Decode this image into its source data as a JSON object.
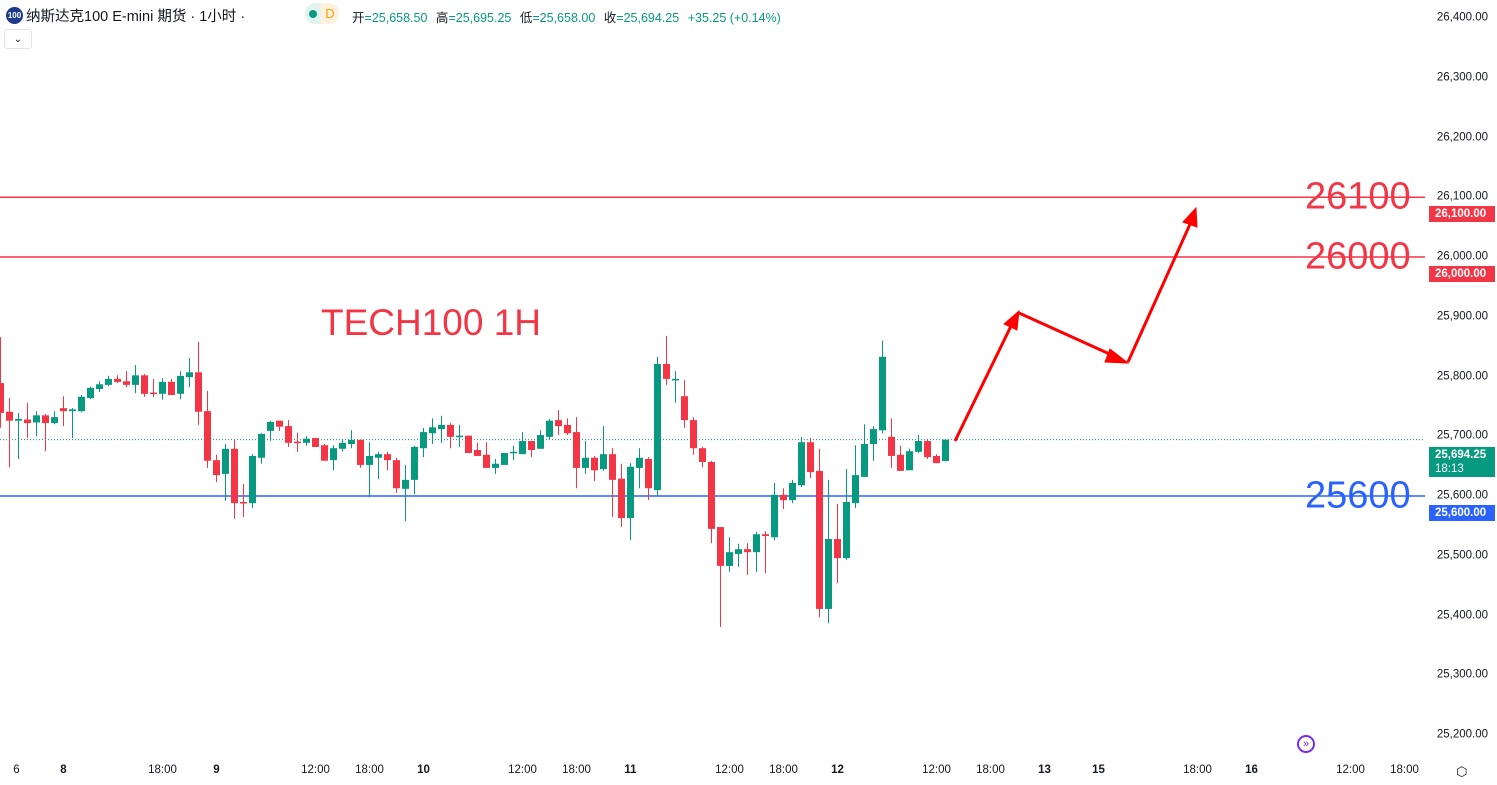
{
  "header": {
    "symbol_logo": "100",
    "title": "纳斯达克100 E-mini 期货 · 1小时 ·",
    "market_status_dot_color": "#089981",
    "data_badge": "D",
    "ohlc": [
      {
        "key": "开",
        "value": "=25,658.50"
      },
      {
        "key": "高",
        "value": "=25,695.25"
      },
      {
        "key": "低",
        "value": "=25,658.00"
      },
      {
        "key": "收",
        "value": "=25,694.25"
      }
    ],
    "change": "+35.25 (+0.14%)",
    "collapse_icon": "chevron-down-icon"
  },
  "colors": {
    "up": "#089981",
    "down": "#f23645",
    "support": "#2962ff",
    "resistance": "#f23645"
  },
  "annotations": {
    "note": "TECH100 1H",
    "levels": [
      {
        "label": "26100",
        "price": 26100,
        "tag": "26,100.00",
        "color": "#f23645"
      },
      {
        "label": "26000",
        "price": 26000,
        "tag": "26,000.00",
        "color": "#f23645"
      },
      {
        "label": "25600",
        "price": 25600,
        "tag": "25,600.00",
        "color": "#2962ff"
      }
    ],
    "projection_arrow_color": "#ff0000"
  },
  "last_price": {
    "tag": "25,694.25",
    "countdown": "18:13",
    "color": "#089981"
  },
  "icons": {
    "goto_realtime": "goto-realtime-icon",
    "settings": "settings-icon"
  },
  "chart_data": {
    "type": "candlestick",
    "title": "纳斯达克100 E-mini 期货 · 1小时",
    "ylim": [
      25150,
      26430
    ],
    "y_ticks": [
      "26,400.00",
      "26,300.00",
      "26,200.00",
      "26,100.00",
      "26,000.00",
      "25,900.00",
      "25,800.00",
      "25,700.00",
      "25,600.00",
      "25,500.00",
      "25,400.00",
      "25,300.00",
      "25,200.00"
    ],
    "y_tick_values": [
      26400,
      26300,
      26200,
      26100,
      26000,
      25900,
      25800,
      25700,
      25600,
      25500,
      25400,
      25300,
      25200
    ],
    "x_ticks": [
      {
        "label": "6",
        "bar": 1,
        "bold": false
      },
      {
        "label": "8",
        "bar": 7,
        "bold": true
      },
      {
        "label": "18:00",
        "bar": 18,
        "bold": false
      },
      {
        "label": "9",
        "bar": 24,
        "bold": true
      },
      {
        "label": "12:00",
        "bar": 35,
        "bold": false
      },
      {
        "label": "18:00",
        "bar": 41,
        "bold": false
      },
      {
        "label": "10",
        "bar": 47,
        "bold": true
      },
      {
        "label": "12:00",
        "bar": 58,
        "bold": false
      },
      {
        "label": "18:00",
        "bar": 64,
        "bold": false
      },
      {
        "label": "11",
        "bar": 70,
        "bold": true
      },
      {
        "label": "12:00",
        "bar": 81,
        "bold": false
      },
      {
        "label": "18:00",
        "bar": 87,
        "bold": false
      },
      {
        "label": "12",
        "bar": 93,
        "bold": true
      },
      {
        "label": "12:00",
        "bar": 104,
        "bold": false
      },
      {
        "label": "18:00",
        "bar": 110,
        "bold": false
      },
      {
        "label": "13",
        "bar": 116,
        "bold": true
      },
      {
        "label": "15",
        "bar": 122,
        "bold": true
      },
      {
        "label": "18:00",
        "bar": 133,
        "bold": false
      },
      {
        "label": "16",
        "bar": 139,
        "bold": true
      },
      {
        "label": "12:00",
        "bar": 150,
        "bold": false
      },
      {
        "label": "18:00",
        "bar": 156,
        "bold": false
      }
    ],
    "ohlc_columns": [
      "open",
      "high",
      "low",
      "close"
    ],
    "candles": [
      [
        25789,
        25866,
        25714,
        25739
      ],
      [
        25741,
        25764,
        25648,
        25726
      ],
      [
        25726,
        25739,
        25662,
        25729
      ],
      [
        25728,
        25756,
        25697,
        25722
      ],
      [
        25723,
        25742,
        25700,
        25735
      ],
      [
        25735,
        25737,
        25675,
        25722
      ],
      [
        25722,
        25742,
        25720,
        25732
      ],
      [
        25747,
        25767,
        25717,
        25742
      ],
      [
        25742,
        25747,
        25697,
        25745
      ],
      [
        25742,
        25769,
        25740,
        25766
      ],
      [
        25764,
        25783,
        25762,
        25781
      ],
      [
        25779,
        25792,
        25774,
        25787
      ],
      [
        25786,
        25801,
        25784,
        25796
      ],
      [
        25796,
        25802,
        25789,
        25791
      ],
      [
        25792,
        25809,
        25782,
        25786
      ],
      [
        25786,
        25819,
        25772,
        25802
      ],
      [
        25802,
        25804,
        25766,
        25771
      ],
      [
        25773,
        25796,
        25766,
        25772
      ],
      [
        25771,
        25797,
        25761,
        25791
      ],
      [
        25791,
        25796,
        25769,
        25769
      ],
      [
        25771,
        25809,
        25762,
        25801
      ],
      [
        25799,
        25831,
        25782,
        25807
      ],
      [
        25807,
        25858,
        25719,
        25741
      ],
      [
        25742,
        25776,
        25647,
        25659
      ],
      [
        25660,
        25669,
        25623,
        25635
      ],
      [
        25637,
        25687,
        25592,
        25679
      ],
      [
        25679,
        25694,
        25562,
        25588
      ],
      [
        25590,
        25620,
        25565,
        25588
      ],
      [
        25588,
        25670,
        25580,
        25667
      ],
      [
        25664,
        25705,
        25654,
        25704
      ],
      [
        25709,
        25726,
        25692,
        25724
      ],
      [
        25726,
        25726,
        25709,
        25716
      ],
      [
        25717,
        25727,
        25682,
        25689
      ],
      [
        25691,
        25706,
        25674,
        25689
      ],
      [
        25689,
        25700,
        25684,
        25696
      ],
      [
        25697,
        25697,
        25682,
        25682
      ],
      [
        25685,
        25687,
        25659,
        25659
      ],
      [
        25660,
        25685,
        25643,
        25680
      ],
      [
        25679,
        25695,
        25674,
        25689
      ],
      [
        25687,
        25710,
        25680,
        25694
      ],
      [
        25694,
        25694,
        25647,
        25652
      ],
      [
        25652,
        25690,
        25598,
        25667
      ],
      [
        25664,
        25674,
        25628,
        25670
      ],
      [
        25670,
        25674,
        25643,
        25660
      ],
      [
        25660,
        25664,
        25605,
        25613
      ],
      [
        25612,
        25652,
        25558,
        25627
      ],
      [
        25627,
        25684,
        25603,
        25682
      ],
      [
        25680,
        25714,
        25665,
        25707
      ],
      [
        25705,
        25730,
        25687,
        25715
      ],
      [
        25712,
        25734,
        25689,
        25719
      ],
      [
        25719,
        25722,
        25680,
        25699
      ],
      [
        25699,
        25719,
        25682,
        25701
      ],
      [
        25701,
        25701,
        25672,
        25672
      ],
      [
        25677,
        25689,
        25667,
        25667
      ],
      [
        25669,
        25690,
        25647,
        25647
      ],
      [
        25647,
        25662,
        25637,
        25654
      ],
      [
        25652,
        25672,
        25652,
        25672
      ],
      [
        25672,
        25684,
        25660,
        25674
      ],
      [
        25670,
        25707,
        25670,
        25692
      ],
      [
        25692,
        25692,
        25665,
        25677
      ],
      [
        25679,
        25710,
        25679,
        25702
      ],
      [
        25699,
        25729,
        25695,
        25726
      ],
      [
        25727,
        25744,
        25702,
        25717
      ],
      [
        25719,
        25730,
        25702,
        25705
      ],
      [
        25707,
        25732,
        25613,
        25647
      ],
      [
        25647,
        25692,
        25637,
        25664
      ],
      [
        25664,
        25667,
        25625,
        25643
      ],
      [
        25645,
        25717,
        25642,
        25670
      ],
      [
        25670,
        25680,
        25565,
        25627
      ],
      [
        25629,
        25654,
        25548,
        25563
      ],
      [
        25563,
        25655,
        25526,
        25649
      ],
      [
        25647,
        25680,
        25613,
        25664
      ],
      [
        25662,
        25665,
        25593,
        25613
      ],
      [
        25610,
        25833,
        25600,
        25821
      ],
      [
        25821,
        25868,
        25786,
        25796
      ],
      [
        25794,
        25809,
        25756,
        25796
      ],
      [
        25767,
        25794,
        25714,
        25727
      ],
      [
        25727,
        25732,
        25669,
        25680
      ],
      [
        25680,
        25682,
        25648,
        25657
      ],
      [
        25657,
        25659,
        25521,
        25545
      ],
      [
        25548,
        25548,
        25381,
        25483
      ],
      [
        25483,
        25531,
        25473,
        25506
      ],
      [
        25503,
        25520,
        25481,
        25511
      ],
      [
        25511,
        25521,
        25468,
        25506
      ],
      [
        25506,
        25540,
        25473,
        25536
      ],
      [
        25536,
        25541,
        25471,
        25533
      ],
      [
        25531,
        25622,
        25526,
        25602
      ],
      [
        25602,
        25613,
        25578,
        25593
      ],
      [
        25593,
        25627,
        25588,
        25622
      ],
      [
        25618,
        25699,
        25615,
        25690
      ],
      [
        25690,
        25697,
        25630,
        25640
      ],
      [
        25642,
        25679,
        25397,
        25411
      ],
      [
        25411,
        25627,
        25387,
        25528
      ],
      [
        25528,
        25587,
        25454,
        25496
      ],
      [
        25496,
        25645,
        25493,
        25590
      ],
      [
        25588,
        25685,
        25580,
        25635
      ],
      [
        25632,
        25720,
        25632,
        25687
      ],
      [
        25687,
        25717,
        25659,
        25712
      ],
      [
        25710,
        25860,
        25705,
        25833
      ],
      [
        25699,
        25730,
        25647,
        25667
      ],
      [
        25669,
        25684,
        25642,
        25642
      ],
      [
        25643,
        25679,
        25643,
        25675
      ],
      [
        25674,
        25702,
        25672,
        25692
      ],
      [
        25692,
        25695,
        25662,
        25665
      ],
      [
        25667,
        25670,
        25655,
        25655
      ],
      [
        25658.5,
        25695.25,
        25658,
        25694.25
      ]
    ]
  }
}
